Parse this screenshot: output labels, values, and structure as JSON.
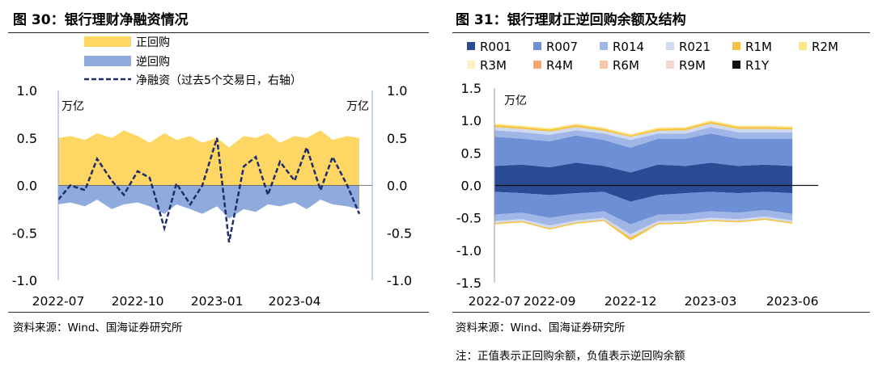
{
  "left": {
    "title": "图 30：银行理财净融资情况",
    "source": "资料来源：Wind、国海证券研究所",
    "chart_data": {
      "type": "area",
      "ylabel_left": "万亿",
      "ylabel_right": "万亿",
      "ylim": [
        -1.0,
        1.0
      ],
      "yticks_left": [
        "1.0",
        "0.5",
        "0.0",
        "-0.5",
        "-1.0"
      ],
      "yticks_right": [
        "1.0",
        "0.5",
        "0.0",
        "-0.5",
        "-1.0"
      ],
      "xticks": [
        "2022-07",
        "2022-10",
        "2023-01",
        "2023-04"
      ],
      "legend": [
        "正回购",
        "逆回购",
        "净融资（过去5个交易日，右轴）"
      ],
      "colors": {
        "repo": "#fdd663",
        "reverse": "#8faadc",
        "net": "#1f2d6b"
      },
      "x": [
        "2022-07-01",
        "2022-07-15",
        "2022-08-01",
        "2022-08-15",
        "2022-09-01",
        "2022-09-15",
        "2022-10-01",
        "2022-10-15",
        "2022-11-01",
        "2022-11-15",
        "2022-12-01",
        "2022-12-15",
        "2023-01-01",
        "2023-01-15",
        "2023-02-01",
        "2023-02-15",
        "2023-03-01",
        "2023-03-15",
        "2023-04-01",
        "2023-04-15",
        "2023-05-01",
        "2023-05-15",
        "2023-06-01",
        "2023-06-15"
      ],
      "series": [
        {
          "name": "正回购",
          "values": [
            0.5,
            0.52,
            0.48,
            0.55,
            0.5,
            0.58,
            0.52,
            0.45,
            0.55,
            0.48,
            0.52,
            0.45,
            0.5,
            0.4,
            0.52,
            0.5,
            0.55,
            0.45,
            0.52,
            0.5,
            0.58,
            0.48,
            0.52,
            0.5
          ]
        },
        {
          "name": "逆回购",
          "values": [
            -0.2,
            -0.18,
            -0.22,
            -0.15,
            -0.25,
            -0.2,
            -0.18,
            -0.22,
            -0.3,
            -0.2,
            -0.25,
            -0.3,
            -0.22,
            -0.35,
            -0.25,
            -0.28,
            -0.2,
            -0.22,
            -0.18,
            -0.25,
            -0.15,
            -0.2,
            -0.22,
            -0.25
          ]
        },
        {
          "name": "净融资（过去5个交易日，右轴）",
          "values": [
            -0.15,
            0.0,
            -0.05,
            0.28,
            0.05,
            -0.1,
            0.15,
            0.08,
            -0.45,
            0.02,
            -0.2,
            0.0,
            0.5,
            -0.6,
            0.2,
            0.3,
            -0.1,
            0.25,
            0.05,
            0.4,
            -0.05,
            0.3,
            0.0,
            -0.3
          ]
        }
      ]
    }
  },
  "right": {
    "title": "图 31：银行理财正逆回购余额及结构",
    "source": "资料来源：Wind、国海证券研究所",
    "note": "注：正值表示正回购余额，负值表示逆回购余额",
    "chart_data": {
      "type": "area",
      "ylabel": "万亿",
      "ylim": [
        -1.5,
        1.5
      ],
      "yticks": [
        "1.5",
        "1.0",
        "0.5",
        "0.0",
        "-0.5",
        "-1.0",
        "-1.5"
      ],
      "xticks": [
        "2022-07",
        "2022-09",
        "2022-12",
        "2023-03",
        "2023-06"
      ],
      "legend": [
        "R001",
        "R007",
        "R014",
        "R021",
        "R1M",
        "R2M",
        "R3M",
        "R4M",
        "R6M",
        "R9M",
        "R1Y"
      ],
      "colors": [
        "#2b4c94",
        "#6c8fd6",
        "#9fb6e6",
        "#cfdaf0",
        "#f5c242",
        "#fde58a",
        "#fdf0c4",
        "#f2a676",
        "#f7c7a8",
        "#f5d5d0",
        "#111111"
      ],
      "x": [
        "2022-07",
        "2022-08",
        "2022-09",
        "2022-10",
        "2022-11",
        "2022-12",
        "2023-01",
        "2023-02",
        "2023-03",
        "2023-04",
        "2023-05",
        "2023-06"
      ],
      "positive": [
        {
          "name": "R001",
          "values": [
            0.3,
            0.32,
            0.28,
            0.35,
            0.3,
            0.2,
            0.32,
            0.3,
            0.35,
            0.3,
            0.32,
            0.3
          ]
        },
        {
          "name": "R007",
          "values": [
            0.45,
            0.4,
            0.4,
            0.42,
            0.4,
            0.38,
            0.4,
            0.42,
            0.45,
            0.42,
            0.4,
            0.42
          ]
        },
        {
          "name": "R014",
          "values": [
            0.1,
            0.1,
            0.1,
            0.08,
            0.1,
            0.12,
            0.08,
            0.08,
            0.1,
            0.1,
            0.1,
            0.1
          ]
        },
        {
          "name": "R021",
          "values": [
            0.05,
            0.05,
            0.05,
            0.05,
            0.04,
            0.05,
            0.04,
            0.05,
            0.05,
            0.05,
            0.05,
            0.04
          ]
        },
        {
          "name": "R1M",
          "values": [
            0.03,
            0.03,
            0.03,
            0.03,
            0.03,
            0.02,
            0.03,
            0.03,
            0.03,
            0.03,
            0.03,
            0.03
          ]
        },
        {
          "name": "R2M",
          "values": [
            0.02,
            0.02,
            0.02,
            0.02,
            0.02,
            0.02,
            0.02,
            0.02,
            0.02,
            0.02,
            0.02,
            0.02
          ]
        }
      ],
      "negative": [
        {
          "name": "R001",
          "values": [
            -0.1,
            -0.12,
            -0.15,
            -0.12,
            -0.1,
            -0.25,
            -0.15,
            -0.12,
            -0.1,
            -0.12,
            -0.1,
            -0.12
          ]
        },
        {
          "name": "R007",
          "values": [
            -0.35,
            -0.3,
            -0.35,
            -0.32,
            -0.3,
            -0.35,
            -0.3,
            -0.32,
            -0.3,
            -0.3,
            -0.28,
            -0.32
          ]
        },
        {
          "name": "R014",
          "values": [
            -0.1,
            -0.1,
            -0.12,
            -0.1,
            -0.1,
            -0.15,
            -0.1,
            -0.1,
            -0.1,
            -0.1,
            -0.1,
            -0.1
          ]
        },
        {
          "name": "R021",
          "values": [
            -0.03,
            -0.03,
            -0.04,
            -0.03,
            -0.03,
            -0.05,
            -0.03,
            -0.03,
            -0.03,
            -0.03,
            -0.03,
            -0.03
          ]
        },
        {
          "name": "R1M",
          "values": [
            -0.02,
            -0.02,
            -0.02,
            -0.02,
            -0.02,
            -0.05,
            -0.02,
            -0.02,
            -0.02,
            -0.02,
            -0.02,
            -0.02
          ]
        }
      ]
    }
  }
}
